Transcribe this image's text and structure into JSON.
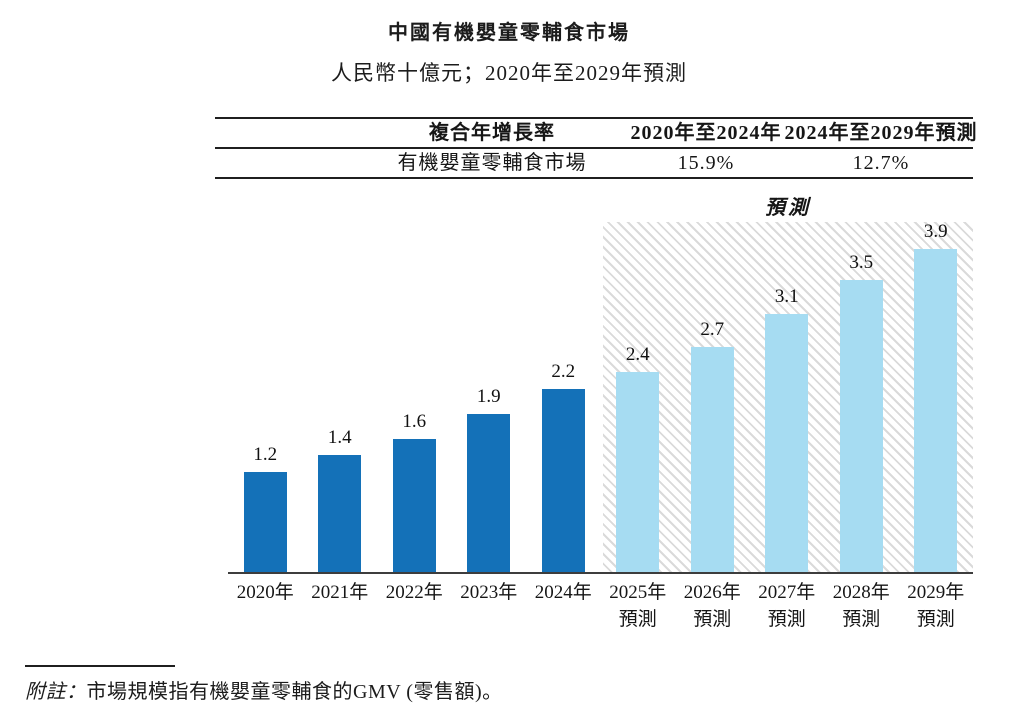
{
  "title": "中國有機嬰童零輔食市場",
  "subtitle": "人民幣十億元；2020年至2029年預測",
  "cagr_table": {
    "headers": [
      "複合年增長率",
      "2020年至2024年",
      "2024年至2029年預測"
    ],
    "row": {
      "label": "有機嬰童零輔食市場",
      "cagr_2020_2024": "15.9%",
      "cagr_2024_2029": "12.7%"
    }
  },
  "chart_data": {
    "type": "bar",
    "title": "中國有機嬰童零輔食市場",
    "unit_note": "人民幣十億元",
    "categories": [
      "2020年",
      "2021年",
      "2022年",
      "2023年",
      "2024年",
      "2025年",
      "2026年",
      "2027年",
      "2028年",
      "2029年"
    ],
    "category_sublabels": [
      "",
      "",
      "",
      "",
      "",
      "預測",
      "預測",
      "預測",
      "預測",
      "預測"
    ],
    "values": [
      1.2,
      1.4,
      1.6,
      1.9,
      2.2,
      2.4,
      2.7,
      3.1,
      3.5,
      3.9
    ],
    "value_labels": [
      "1.2",
      "1.4",
      "1.6",
      "1.9",
      "2.2",
      "2.4",
      "2.7",
      "3.1",
      "3.5",
      "3.9"
    ],
    "forecast_start_index": 5,
    "forecast_region_label": "預測",
    "ylim": [
      0,
      4.2
    ],
    "grid": false,
    "legend_position": "none",
    "colors": {
      "actual_bar": "#1471b8",
      "forecast_bar": "#a6dcf2",
      "hatch_line": "#dadada",
      "axis": "#3d3d3d"
    }
  },
  "footnote": {
    "prefix": "附註：",
    "text": "市場規模指有機嬰童零輔食的GMV (零售額)。"
  }
}
